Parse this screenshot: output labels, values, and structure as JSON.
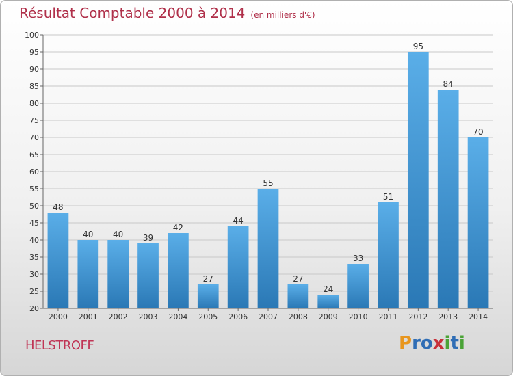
{
  "title": "Résultat Comptable 2000 à 2014",
  "unit": "(en milliers d'€)",
  "location": "HELSTROFF",
  "logo": {
    "parts": [
      "P",
      "r",
      "o",
      "x",
      "i",
      "t",
      "i"
    ],
    "colors": [
      "#e8961e",
      "#2f6db5",
      "#2f6db5",
      "#c8303a",
      "#4aa336",
      "#2f6db5",
      "#4aa336"
    ]
  },
  "colors": {
    "bar_top": "#5aaee8",
    "bar_bottom": "#2a78b5",
    "title": "#b0304a",
    "grid": "#c8c8c8"
  },
  "chart_data": {
    "type": "bar",
    "title": "Résultat Comptable 2000 à 2014",
    "xlabel": "",
    "ylabel": "",
    "categories": [
      "2000",
      "2001",
      "2002",
      "2003",
      "2004",
      "2005",
      "2006",
      "2007",
      "2008",
      "2009",
      "2010",
      "2011",
      "2012",
      "2013",
      "2014"
    ],
    "values": [
      48,
      40,
      40,
      39,
      42,
      27,
      44,
      55,
      27,
      24,
      33,
      51,
      95,
      84,
      70
    ],
    "ylim": [
      20,
      100
    ],
    "yticks": [
      20,
      25,
      30,
      35,
      40,
      45,
      50,
      55,
      60,
      65,
      70,
      75,
      80,
      85,
      90,
      95,
      100
    ],
    "grid": true
  }
}
